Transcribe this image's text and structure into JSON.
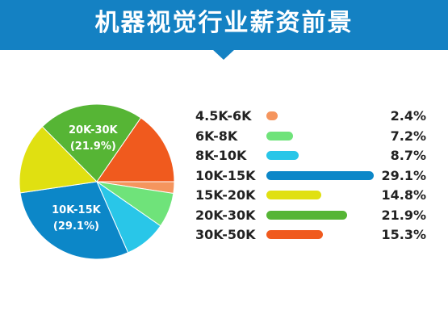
{
  "header": {
    "title": "机器视觉行业薪资前景"
  },
  "colors": {
    "header_bg": "#1481c3"
  },
  "chart_data": {
    "type": "pie",
    "title": "机器视觉行业薪资前景",
    "categories": [
      "4.5K-6K",
      "6K-8K",
      "8K-10K",
      "10K-15K",
      "15K-20K",
      "20K-30K",
      "30K-50K"
    ],
    "values": [
      2.4,
      7.2,
      8.7,
      29.1,
      14.8,
      21.9,
      15.3
    ],
    "labels": [
      "2.4%",
      "7.2%",
      "8.7%",
      "29.1%",
      "14.8%",
      "21.9%",
      "15.3%"
    ],
    "colors": [
      "#f5955e",
      "#6fe37a",
      "#29c6e8",
      "#0c87c8",
      "#e0e011",
      "#56b535",
      "#f05a1e"
    ],
    "slice_labels": [
      {
        "index": 3,
        "category": "10K-15K",
        "value": "(29.1%)"
      },
      {
        "index": 5,
        "category": "20K-30K",
        "value": "(21.9%)"
      }
    ],
    "legend_position": "right"
  }
}
